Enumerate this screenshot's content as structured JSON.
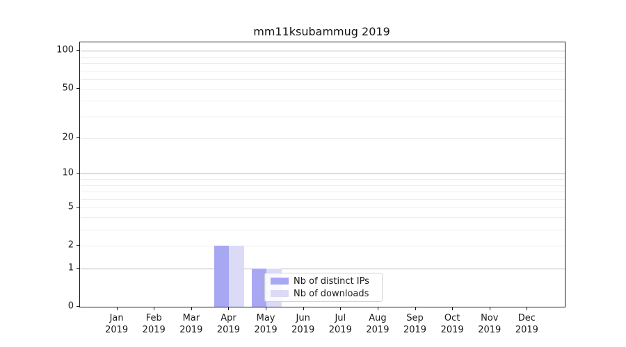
{
  "chart_data": {
    "type": "bar",
    "title": "mm11ksubammug 2019",
    "categories": [
      "Jan",
      "Feb",
      "Mar",
      "Apr",
      "May",
      "Jun",
      "Jul",
      "Aug",
      "Sep",
      "Oct",
      "Nov",
      "Dec"
    ],
    "category_year": "2019",
    "series": [
      {
        "name": "Nb of distinct IPs",
        "color": "#a7a7f2",
        "values": [
          0,
          0,
          0,
          2,
          1,
          0,
          0,
          0,
          0,
          0,
          0,
          0
        ]
      },
      {
        "name": "Nb of downloads",
        "color": "#dbdbf7",
        "values": [
          0,
          0,
          0,
          2,
          1,
          0,
          0,
          0,
          0,
          0,
          0,
          0
        ]
      }
    ],
    "xlabel": "",
    "ylabel": "",
    "yscale": "log1p",
    "ylim": [
      0,
      117
    ],
    "yticks": [
      0,
      1,
      2,
      5,
      10,
      20,
      50,
      100
    ],
    "major_gridlines": [
      1,
      10,
      100
    ],
    "minor_gridlines": [
      2,
      3,
      4,
      5,
      6,
      7,
      8,
      9,
      20,
      30,
      40,
      50,
      60,
      70,
      80,
      90
    ],
    "grid": {
      "major_color": "#b8b8b8",
      "minor_color": "#ededed"
    },
    "legend_position": "lower center-right, overlapping May bar"
  }
}
